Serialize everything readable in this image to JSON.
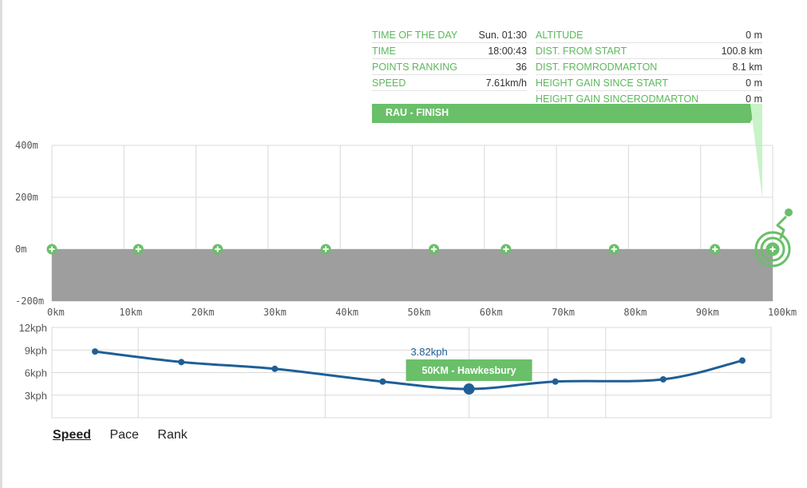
{
  "stats_left": [
    {
      "key": "TIME OF THE DAY",
      "value": "Sun. 01:30"
    },
    {
      "key": "TIME",
      "value": "18:00:43"
    },
    {
      "key": "POINTS RANKING",
      "value": "36"
    },
    {
      "key": "SPEED",
      "value": "7.61km/h"
    }
  ],
  "stats_right": [
    {
      "key": "ALTITUDE",
      "value": "0 m"
    },
    {
      "key": "DIST. FROM START",
      "value": "100.8 km"
    },
    {
      "key": "DIST. FROMRODMARTON",
      "value": "8.1 km"
    },
    {
      "key": "HEIGHT GAIN SINCE START",
      "value": "0 m"
    },
    {
      "key": "HEIGHT GAIN SINCERODMARTON",
      "value": "0 m"
    }
  ],
  "banner": "RAU - FINISH",
  "colors": {
    "accent_green": "#6abf69",
    "label_green": "#5cb85c",
    "banner_tail": "#c8f3c8",
    "elevation_fill": "#9e9e9e",
    "grid": "#d9d9d9",
    "speed_line": "#1f5f96"
  },
  "tabs": [
    {
      "label": "Speed",
      "active": true
    },
    {
      "label": "Pace",
      "active": false
    },
    {
      "label": "Rank",
      "active": false
    }
  ],
  "chart_data": [
    {
      "type": "area",
      "title": "",
      "xlabel": "",
      "ylabel": "",
      "xlim": [
        0,
        100
      ],
      "ylim": [
        -200,
        400
      ],
      "x_ticks": [
        0,
        10,
        20,
        30,
        40,
        50,
        60,
        70,
        80,
        90,
        100
      ],
      "x_tick_labels": [
        "0km",
        "10km",
        "20km",
        "30km",
        "40km",
        "50km",
        "60km",
        "70km",
        "80km",
        "90km",
        "100km"
      ],
      "y_ticks": [
        400,
        200,
        0,
        -200
      ],
      "y_tick_labels": [
        "400m",
        "200m",
        "0m",
        "-200m"
      ],
      "grid": true,
      "series": [
        {
          "x": [
            0,
            100
          ],
          "y": [
            0,
            0
          ]
        }
      ],
      "checkpoints_km": [
        0,
        12,
        23,
        38,
        53,
        63,
        78,
        92,
        100
      ],
      "rider_position_km": 100
    },
    {
      "type": "line",
      "title": "",
      "xlabel": "",
      "ylabel": "",
      "xlim": [
        0,
        100
      ],
      "ylim": [
        0,
        12
      ],
      "y_ticks": [
        3,
        6,
        9,
        12
      ],
      "y_tick_labels": [
        "3kph",
        "6kph",
        "9kph",
        "12kph"
      ],
      "grid": true,
      "series": [
        {
          "x": [
            6,
            18,
            31,
            46,
            58,
            70,
            85,
            96
          ],
          "y": [
            8.8,
            7.4,
            6.5,
            4.8,
            3.82,
            4.8,
            5.1,
            7.6
          ]
        }
      ],
      "highlighted_index": 4,
      "highlight_label": "3.82kph",
      "tooltip": "50KM - Hawkesbury"
    }
  ]
}
